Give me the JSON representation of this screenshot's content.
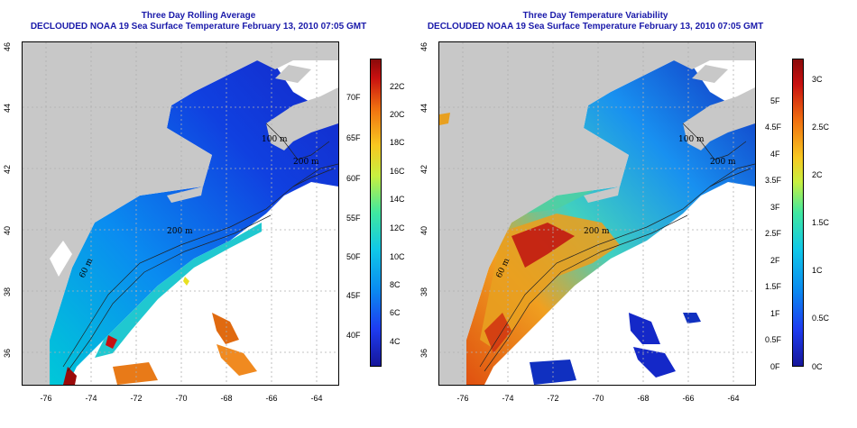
{
  "left_panel": {
    "title_line1": "Three Day Rolling Average",
    "title_line2": "DECLOUDED NOAA 19 Sea Surface Temperature February 13, 2010 07:05 GMT",
    "colorbar_celsius": [
      "22C",
      "20C",
      "18C",
      "16C",
      "14C",
      "12C",
      "10C",
      "8C",
      "6C",
      "4C"
    ],
    "colorbar_fahrenheit": [
      "70F",
      "65F",
      "60F",
      "55F",
      "50F",
      "45F",
      "40F"
    ]
  },
  "right_panel": {
    "title_line1": "Three Day Temperature Variability",
    "title_line2": "DECLOUDED NOAA 19 Sea Surface Temperature February 13, 2010 07:05 GMT",
    "colorbar_celsius": [
      "3C",
      "2.5C",
      "2C",
      "1.5C",
      "1C",
      "0.5C",
      "0C"
    ],
    "colorbar_fahrenheit": [
      "5F",
      "4.5F",
      "4F",
      "3.5F",
      "3F",
      "2.5F",
      "2F",
      "1.5F",
      "1F",
      "0.5F",
      "0F"
    ]
  },
  "axes": {
    "lat_ticks": [
      "36",
      "38",
      "40",
      "42",
      "44",
      "46"
    ],
    "lon_ticks": [
      "-76",
      "-74",
      "-72",
      "-70",
      "-68",
      "-66",
      "-64"
    ]
  },
  "contour_labels": {
    "left": [
      "200 m",
      "100 m",
      "200 m",
      "60 m"
    ],
    "right": [
      "200 m",
      "100 m",
      "200 m",
      "60 m"
    ]
  },
  "colors": {
    "land": "#c8c8c8",
    "title": "#1a1aaa",
    "grid": "#b0b0b0"
  }
}
